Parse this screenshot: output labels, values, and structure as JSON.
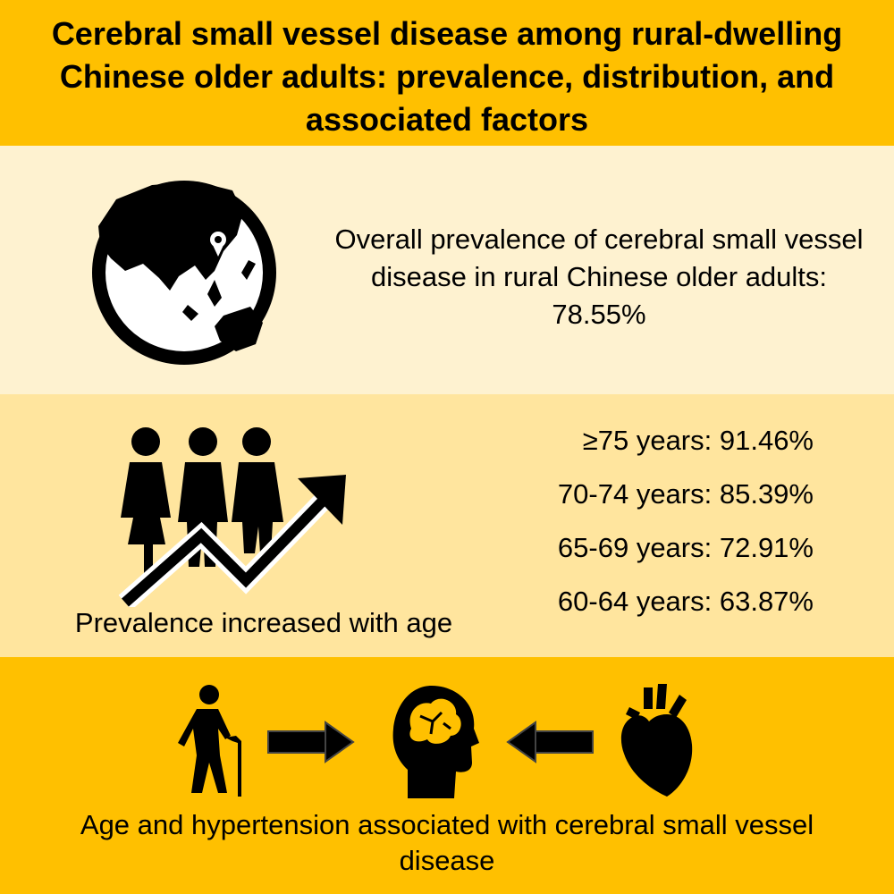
{
  "colors": {
    "title_band": "#FFC000",
    "prevalence_band": "#FEF2D0",
    "age_band": "#FFE59E",
    "factors_band": "#FFC000",
    "icon": "#000000"
  },
  "title": "Cerebral small vessel disease among rural-dwelling Chinese older adults: prevalence, distribution, and associated factors",
  "overall": {
    "icon": "globe-icon",
    "text": "Overall prevalence of cerebral small vessel disease in rural Chinese older adults: 78.55%"
  },
  "age_distribution": {
    "icon": "people-rising-arrow-icon",
    "caption": "Prevalence increased with age",
    "groups": [
      {
        "label": "≥75 years: 91.46%"
      },
      {
        "label": "70-74 years: 85.39%"
      },
      {
        "label": "65-69 years: 72.91%"
      },
      {
        "label": "60-64 years: 63.87%"
      }
    ]
  },
  "factors": {
    "icons": [
      "elderly-person-icon",
      "arrow-right-icon",
      "brain-icon",
      "arrow-left-icon",
      "heart-icon"
    ],
    "text": "Age and hypertension associated with cerebral small vessel disease"
  }
}
